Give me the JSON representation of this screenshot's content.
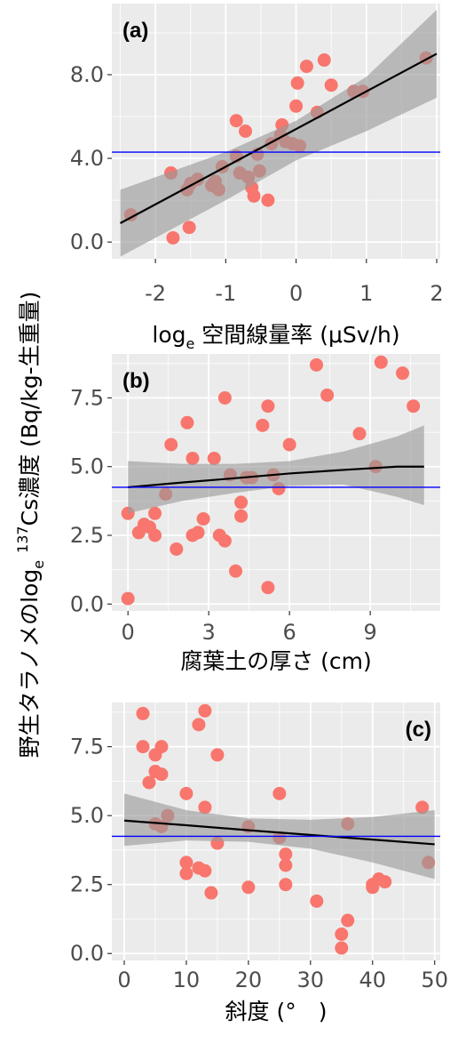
{
  "figure": {
    "shared_ylabel": {
      "pre": "野生タラノメのlog",
      "sub": "e",
      "mid": " ",
      "sup": "137",
      "post": "Cs濃度 (Bq/kg-生重量)"
    }
  },
  "colors": {
    "panel_bg": "#ebebeb",
    "grid": "#ffffff",
    "points": "#f8766d",
    "band": "#999999",
    "fit": "#000000",
    "ref_line": "#0000ff"
  },
  "chart_data": [
    {
      "type": "scatter",
      "panel_label": "(a)",
      "xlabel": {
        "pre": "log",
        "sub": "e",
        "post": " 空間線量率 (μSv/h)"
      },
      "xlim": [
        -2.62,
        2.05
      ],
      "ylim": [
        -0.8,
        11.4
      ],
      "xticks": [
        -2,
        -1,
        0,
        1,
        2
      ],
      "xtick_labels": [
        "-2",
        "-1",
        "0",
        "1",
        "2"
      ],
      "yticks": [
        0,
        4,
        8
      ],
      "ytick_labels": [
        "0.0",
        "4.0",
        "8.0"
      ],
      "points": [
        [
          -2.35,
          1.3
        ],
        [
          -1.78,
          3.3
        ],
        [
          -1.75,
          0.2
        ],
        [
          -1.55,
          2.5
        ],
        [
          -1.52,
          0.7
        ],
        [
          -1.5,
          2.8
        ],
        [
          -1.4,
          3.0
        ],
        [
          -1.2,
          2.7
        ],
        [
          -1.15,
          2.9
        ],
        [
          -1.1,
          2.5
        ],
        [
          -1.05,
          3.6
        ],
        [
          -0.85,
          5.8
        ],
        [
          -0.85,
          4.1
        ],
        [
          -0.8,
          3.3
        ],
        [
          -0.72,
          5.3
        ],
        [
          -0.68,
          3.1
        ],
        [
          -0.63,
          2.6
        ],
        [
          -0.6,
          2.2
        ],
        [
          -0.55,
          4.2
        ],
        [
          -0.52,
          3.4
        ],
        [
          -0.4,
          2.0
        ],
        [
          -0.35,
          4.7
        ],
        [
          -0.22,
          5.1
        ],
        [
          -0.2,
          5.6
        ],
        [
          -0.15,
          4.8
        ],
        [
          -0.05,
          4.7
        ],
        [
          0.0,
          6.5
        ],
        [
          0.02,
          7.6
        ],
        [
          0.05,
          4.6
        ],
        [
          0.15,
          8.4
        ],
        [
          0.3,
          6.2
        ],
        [
          0.4,
          8.7
        ],
        [
          0.5,
          7.5
        ],
        [
          0.82,
          7.2
        ],
        [
          0.95,
          7.2
        ],
        [
          1.85,
          8.8
        ]
      ],
      "fit": {
        "x": [
          -2.5,
          2.0
        ],
        "y": [
          0.9,
          9.0
        ]
      },
      "band": {
        "x": [
          -2.5,
          -1.0,
          0.0,
          1.0,
          2.0
        ],
        "lower": [
          -0.7,
          2.0,
          3.9,
          5.3,
          6.9
        ],
        "upper": [
          2.5,
          4.3,
          5.8,
          7.9,
          11.1
        ]
      },
      "hline": 4.3
    },
    {
      "type": "scatter",
      "panel_label": "(b)",
      "xlabel": {
        "pre": "腐葉土の厚さ (cm)",
        "sub": "",
        "post": ""
      },
      "xlim": [
        -0.6,
        11.6
      ],
      "ylim": [
        -0.25,
        9.1
      ],
      "xticks": [
        0,
        3,
        6,
        9
      ],
      "xtick_labels": [
        "0",
        "3",
        "6",
        "9"
      ],
      "yticks": [
        0,
        2.5,
        5,
        7.5
      ],
      "ytick_labels": [
        "0.0",
        "2.5",
        "5.0",
        "7.5"
      ],
      "points": [
        [
          0,
          3.3
        ],
        [
          0,
          0.2
        ],
        [
          0.4,
          2.6
        ],
        [
          0.6,
          2.9
        ],
        [
          0.8,
          2.8
        ],
        [
          1,
          3.3
        ],
        [
          1,
          2.5
        ],
        [
          1.4,
          4.0
        ],
        [
          1.6,
          5.8
        ],
        [
          1.8,
          2.0
        ],
        [
          2.2,
          6.6
        ],
        [
          2.4,
          5.3
        ],
        [
          2.4,
          2.5
        ],
        [
          2.6,
          2.6
        ],
        [
          2.8,
          3.1
        ],
        [
          3.2,
          5.3
        ],
        [
          3.4,
          2.5
        ],
        [
          3.6,
          2.3
        ],
        [
          3.6,
          7.5
        ],
        [
          3.8,
          4.7
        ],
        [
          4.0,
          1.2
        ],
        [
          4.2,
          3.7
        ],
        [
          4.2,
          3.2
        ],
        [
          4.4,
          4.6
        ],
        [
          4.6,
          4.6
        ],
        [
          5.0,
          6.5
        ],
        [
          5.2,
          7.2
        ],
        [
          5.2,
          0.6
        ],
        [
          5.4,
          4.7
        ],
        [
          5.6,
          4.2
        ],
        [
          6.0,
          5.8
        ],
        [
          7.0,
          8.7
        ],
        [
          7.4,
          7.6
        ],
        [
          8.6,
          6.2
        ],
        [
          9.2,
          5.0
        ],
        [
          9.4,
          8.8
        ],
        [
          10.2,
          8.4
        ],
        [
          10.6,
          7.2
        ]
      ],
      "fit": {
        "x": [
          0,
          2,
          4,
          6,
          8,
          10,
          11
        ],
        "y": [
          4.25,
          4.42,
          4.58,
          4.75,
          4.88,
          5.0,
          5.0
        ]
      },
      "band": {
        "x": [
          0,
          2,
          4,
          6,
          8,
          10,
          11
        ],
        "lower": [
          3.3,
          3.75,
          4.05,
          4.3,
          4.35,
          3.9,
          3.6
        ],
        "upper": [
          5.2,
          5.1,
          5.1,
          5.2,
          5.55,
          6.1,
          6.5
        ]
      },
      "hline": 4.25
    },
    {
      "type": "scatter",
      "panel_label": "(c)",
      "xlabel": {
        "pre": "斜度 (°　)",
        "sub": "",
        "post": ""
      },
      "xlim": [
        -2.0,
        50.9
      ],
      "ylim": [
        -0.25,
        9.1
      ],
      "xticks": [
        0,
        10,
        20,
        30,
        40,
        50
      ],
      "xtick_labels": [
        "0",
        "10",
        "20",
        "30",
        "40",
        "50"
      ],
      "yticks": [
        0,
        2.5,
        5,
        7.5
      ],
      "ytick_labels": [
        "0.0",
        "2.5",
        "5.0",
        "7.5"
      ],
      "points": [
        [
          3,
          8.7
        ],
        [
          3,
          7.5
        ],
        [
          4,
          6.2
        ],
        [
          5,
          7.2
        ],
        [
          5,
          6.6
        ],
        [
          5,
          4.7
        ],
        [
          6,
          7.5
        ],
        [
          6,
          6.5
        ],
        [
          6,
          4.6
        ],
        [
          7,
          5.0
        ],
        [
          10,
          5.8
        ],
        [
          10,
          3.3
        ],
        [
          10,
          2.9
        ],
        [
          12,
          8.3
        ],
        [
          12,
          3.1
        ],
        [
          13,
          8.8
        ],
        [
          13,
          5.3
        ],
        [
          13,
          3.0
        ],
        [
          14,
          2.2
        ],
        [
          15,
          7.2
        ],
        [
          15,
          4.0
        ],
        [
          20,
          4.6
        ],
        [
          20,
          2.4
        ],
        [
          25,
          5.8
        ],
        [
          25,
          4.2
        ],
        [
          26,
          3.6
        ],
        [
          26,
          3.2
        ],
        [
          26,
          2.5
        ],
        [
          31,
          1.9
        ],
        [
          35,
          0.7
        ],
        [
          35,
          0.2
        ],
        [
          36,
          4.7
        ],
        [
          36,
          1.2
        ],
        [
          40,
          2.5
        ],
        [
          40,
          2.4
        ],
        [
          41,
          2.7
        ],
        [
          42,
          2.6
        ],
        [
          48,
          5.3
        ],
        [
          49,
          3.3
        ]
      ],
      "fit": {
        "x": [
          0,
          10,
          20,
          30,
          40,
          50
        ],
        "y": [
          4.82,
          4.65,
          4.47,
          4.3,
          4.13,
          3.96
        ]
      },
      "band": {
        "x": [
          0,
          10,
          20,
          30,
          40,
          50
        ],
        "lower": [
          3.9,
          4.1,
          4.05,
          3.8,
          3.3,
          2.7
        ],
        "upper": [
          5.8,
          5.2,
          4.9,
          4.85,
          4.95,
          5.2
        ]
      },
      "hline": 4.25
    }
  ]
}
